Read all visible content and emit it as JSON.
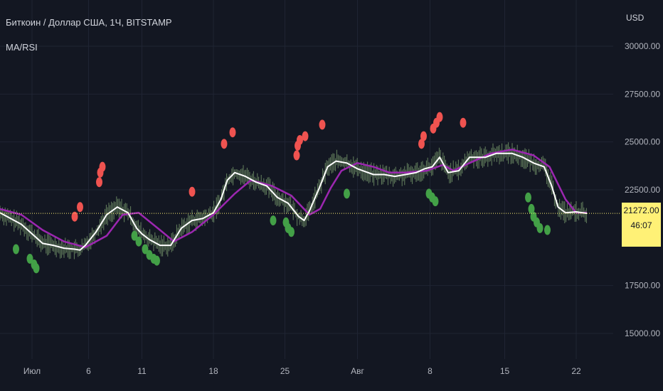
{
  "header": {
    "title": "Биткоин / Доллар США, 1Ч, BITSTAMP",
    "indicator": "MA/RSI",
    "currency": "USD"
  },
  "colors": {
    "background": "#131722",
    "grid": "#1f2433",
    "price_line": "#ffffff",
    "ma_line": "#9c27b0",
    "candles": "#7a9c6e",
    "buy_marker": "#43a047",
    "sell_marker": "#ef5350",
    "badge": "#fff176"
  },
  "price_badge": {
    "price": "21272.00",
    "timer": "46:07"
  },
  "chart_data": {
    "type": "line",
    "yaxis": {
      "ylim": [
        13500,
        31500
      ],
      "ticks": [
        {
          "value": 30000,
          "label": "30000.00"
        },
        {
          "value": 27500,
          "label": "27500.00"
        },
        {
          "value": 25000,
          "label": "25000.00"
        },
        {
          "value": 22500,
          "label": "22500.00"
        },
        {
          "value": 17500,
          "label": "17500.00"
        },
        {
          "value": 15000,
          "label": "15000.00"
        }
      ]
    },
    "xaxis": {
      "xlim": [
        0,
        55
      ],
      "ticks": [
        {
          "value": 3,
          "label": "Июл"
        },
        {
          "value": 8.3,
          "label": "6"
        },
        {
          "value": 13.3,
          "label": "11"
        },
        {
          "value": 20,
          "label": "18"
        },
        {
          "value": 26.7,
          "label": "25"
        },
        {
          "value": 33.5,
          "label": "Авг"
        },
        {
          "value": 40.3,
          "label": "8"
        },
        {
          "value": 47.3,
          "label": "15"
        },
        {
          "value": 54,
          "label": "22"
        }
      ]
    },
    "current_price": 21272,
    "series": [
      {
        "values": [
          [
            0,
            21300
          ],
          [
            1,
            21000
          ],
          [
            2,
            20700
          ],
          [
            3,
            20200
          ],
          [
            4,
            19700
          ],
          [
            5,
            19600
          ],
          [
            6,
            19450
          ],
          [
            7,
            19400
          ],
          [
            7.5,
            19350
          ],
          [
            8,
            19600
          ],
          [
            9,
            20300
          ],
          [
            10,
            21200
          ],
          [
            11,
            21600
          ],
          [
            12,
            21300
          ],
          [
            12.8,
            20500
          ],
          [
            13.3,
            20200
          ],
          [
            14,
            19900
          ],
          [
            15,
            19600
          ],
          [
            16,
            19600
          ],
          [
            17,
            20500
          ],
          [
            18,
            20900
          ],
          [
            19,
            21000
          ],
          [
            20,
            21300
          ],
          [
            20.7,
            22000
          ],
          [
            21.3,
            23000
          ],
          [
            22,
            23400
          ],
          [
            23,
            23200
          ],
          [
            24,
            22900
          ],
          [
            25,
            22700
          ],
          [
            26,
            22100
          ],
          [
            27,
            21800
          ],
          [
            28,
            21100
          ],
          [
            28.5,
            20900
          ],
          [
            29,
            21400
          ],
          [
            30,
            22700
          ],
          [
            30.7,
            23700
          ],
          [
            31.5,
            24000
          ],
          [
            32.5,
            23900
          ],
          [
            33.5,
            23600
          ],
          [
            35,
            23300
          ],
          [
            36,
            23300
          ],
          [
            37,
            23200
          ],
          [
            38,
            23300
          ],
          [
            39,
            23400
          ],
          [
            39.8,
            23600
          ],
          [
            40.5,
            23700
          ],
          [
            41.2,
            24200
          ],
          [
            42,
            23400
          ],
          [
            43,
            23500
          ],
          [
            44,
            24200
          ],
          [
            44.5,
            24200
          ],
          [
            45.5,
            24200
          ],
          [
            46.5,
            24400
          ],
          [
            48,
            24400
          ],
          [
            49,
            24200
          ],
          [
            50,
            23900
          ],
          [
            51,
            23700
          ],
          [
            51.7,
            22700
          ],
          [
            52.3,
            21600
          ],
          [
            53,
            21300
          ],
          [
            54,
            21350
          ],
          [
            55,
            21272
          ]
        ]
      },
      {
        "values": [
          [
            0,
            21500
          ],
          [
            2,
            21200
          ],
          [
            4,
            20400
          ],
          [
            6,
            19800
          ],
          [
            8,
            19500
          ],
          [
            10,
            20100
          ],
          [
            11.5,
            21200
          ],
          [
            13,
            21300
          ],
          [
            15,
            20400
          ],
          [
            16.3,
            19800
          ],
          [
            18,
            20300
          ],
          [
            20,
            21200
          ],
          [
            22,
            22300
          ],
          [
            23.5,
            23000
          ],
          [
            25.5,
            22700
          ],
          [
            27.3,
            22200
          ],
          [
            29,
            21200
          ],
          [
            30,
            21500
          ],
          [
            31,
            22600
          ],
          [
            32,
            23500
          ],
          [
            33.5,
            23900
          ],
          [
            35,
            23700
          ],
          [
            36.5,
            23400
          ],
          [
            38,
            23400
          ],
          [
            40,
            23500
          ],
          [
            41.5,
            23800
          ],
          [
            42.5,
            23500
          ],
          [
            44,
            23900
          ],
          [
            46,
            24400
          ],
          [
            48,
            24600
          ],
          [
            50,
            24300
          ],
          [
            51.5,
            23700
          ],
          [
            53,
            22000
          ],
          [
            54,
            21300
          ],
          [
            55,
            21300
          ]
        ]
      }
    ],
    "markers": {
      "sell": [
        [
          7,
          21100
        ],
        [
          7.5,
          21600
        ],
        [
          9.3,
          22900
        ],
        [
          9.4,
          23400
        ],
        [
          9.6,
          23700
        ],
        [
          18,
          22400
        ],
        [
          21,
          24900
        ],
        [
          21.8,
          25500
        ],
        [
          27.8,
          24300
        ],
        [
          27.9,
          24800
        ],
        [
          28.1,
          25100
        ],
        [
          28.6,
          25300
        ],
        [
          30.2,
          25900
        ],
        [
          39.5,
          24900
        ],
        [
          39.7,
          25300
        ],
        [
          40.6,
          25700
        ],
        [
          40.9,
          26000
        ],
        [
          41.2,
          26300
        ],
        [
          43.4,
          26000
        ]
      ],
      "buy": [
        [
          1.5,
          19400
        ],
        [
          2.8,
          18900
        ],
        [
          3.2,
          18600
        ],
        [
          3.4,
          18400
        ],
        [
          12.6,
          20100
        ],
        [
          13,
          19800
        ],
        [
          13.6,
          19400
        ],
        [
          14,
          19100
        ],
        [
          14.4,
          18900
        ],
        [
          14.7,
          18800
        ],
        [
          25.6,
          20900
        ],
        [
          26.8,
          20800
        ],
        [
          27,
          20500
        ],
        [
          27.3,
          20300
        ],
        [
          32.5,
          22300
        ],
        [
          40.2,
          22300
        ],
        [
          40.5,
          22100
        ],
        [
          40.8,
          21900
        ],
        [
          49.5,
          22100
        ],
        [
          49.8,
          21500
        ],
        [
          50,
          21100
        ],
        [
          50.3,
          20800
        ],
        [
          50.6,
          20500
        ],
        [
          51.3,
          20400
        ]
      ]
    }
  }
}
